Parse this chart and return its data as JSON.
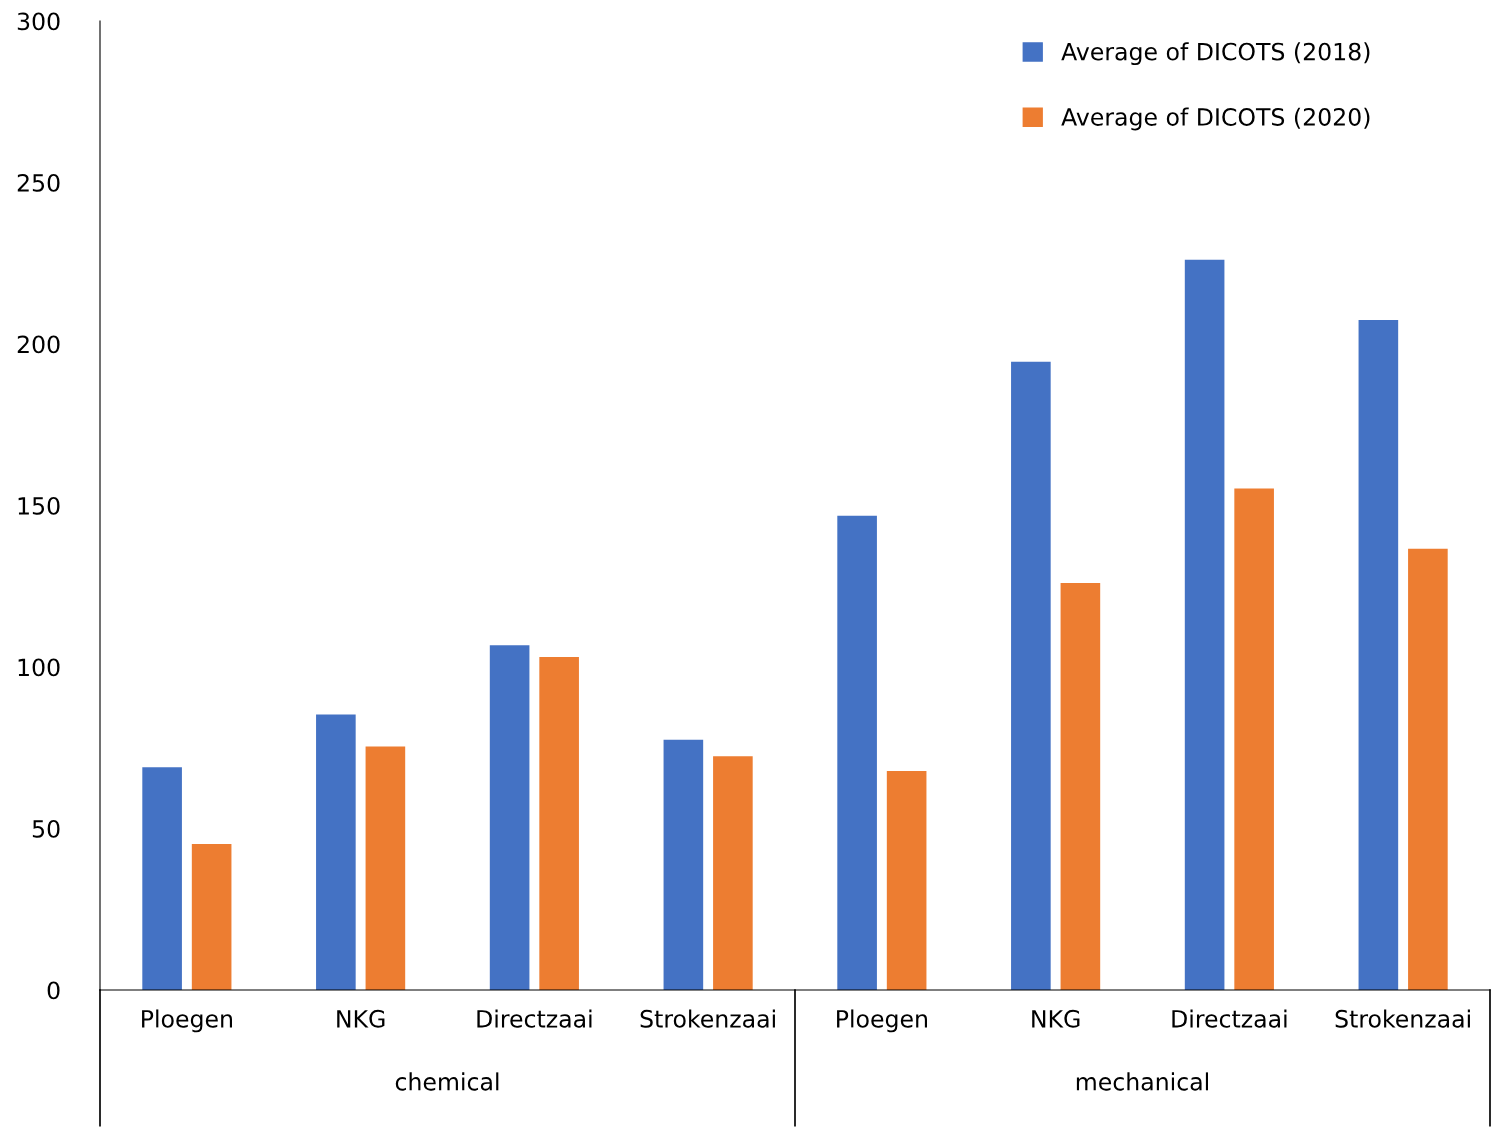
{
  "chart_data": {
    "type": "bar",
    "categories": [
      "Ploegen",
      "NKG",
      "Directzaai",
      "Strokenzaai",
      "Ploegen",
      "NKG",
      "Directzaai",
      "Strokenzaai"
    ],
    "series": [
      {
        "name": "Average of DICOTS (2018)",
        "color": "#4472c4",
        "values": [
          69.0,
          85.3,
          106.7,
          77.5,
          146.8,
          194.5,
          226.1,
          207.4
        ]
      },
      {
        "name": "Average of DICOTS (2020)",
        "color": "#ed7d31",
        "values": [
          45.2,
          75.4,
          103.1,
          72.4,
          67.8,
          126.0,
          155.3,
          136.6
        ]
      }
    ],
    "annotations": [
      "chemical",
      "mechanical"
    ],
    "ylim": [
      0,
      300
    ],
    "yticks": [
      0,
      50,
      100,
      150,
      200,
      250,
      300
    ],
    "grid": false,
    "legend": "top right"
  }
}
